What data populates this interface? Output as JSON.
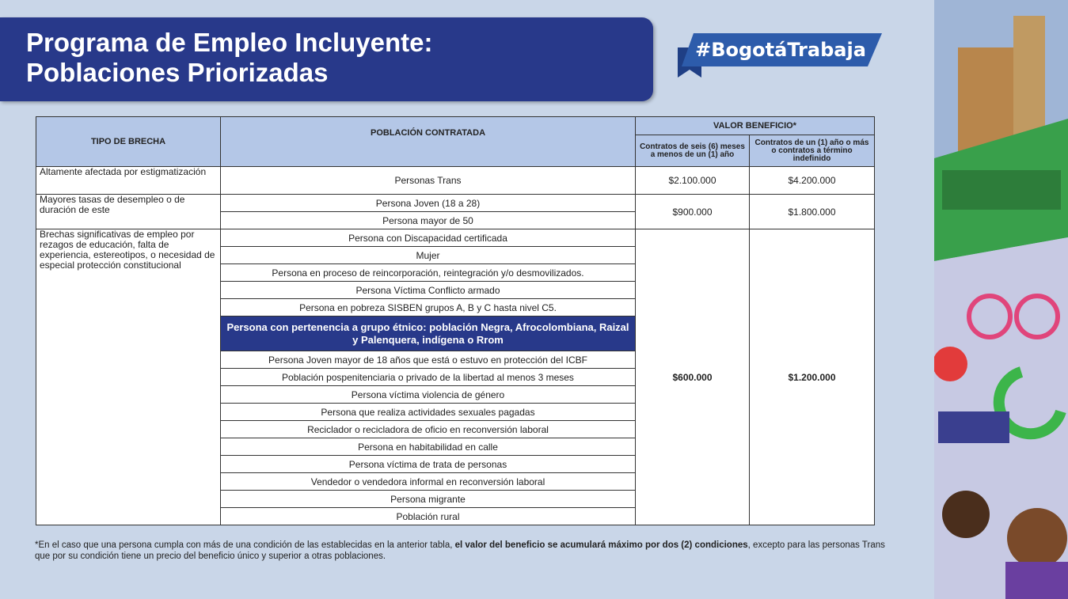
{
  "header": {
    "title_lines": [
      "Programa de Empleo Incluyente:",
      "Poblaciones Priorizadas"
    ],
    "hashtag": "#BogotáTrabaja"
  },
  "table": {
    "headers": {
      "gap": "TIPO DE BRECHA",
      "population": "POBLACIÓN CONTRATADA",
      "value_group": "VALOR BENEFICIO*",
      "value_short": "Contratos de seis (6) meses a menos de un (1) año",
      "value_long": "Contratos de un (1) año o más o contratos a término indefinido"
    },
    "groups": [
      {
        "gap": "Altamente afectada por estigmatización",
        "populations": [
          "Personas Trans"
        ],
        "value_short": "$2.100.000",
        "value_long": "$4.200.000"
      },
      {
        "gap": "Mayores tasas de desempleo o de duración de este",
        "populations": [
          "Persona Joven (18 a 28)",
          "Persona mayor de 50"
        ],
        "value_short": "$900.000",
        "value_long": "$1.800.000"
      },
      {
        "gap": "Brechas significativas de empleo por rezagos de educación, falta de experiencia, estereotipos, o necesidad de especial protección constitucional",
        "populations": [
          "Persona con Discapacidad certificada",
          "Mujer",
          "Persona en proceso de reincorporación, reintegración y/o desmovilizados.",
          "Persona Víctima Conflicto armado",
          "Persona en pobreza SISBEN grupos A, B y C hasta nivel C5.",
          "Persona con pertenencia a grupo étnico: población Negra, Afrocolombiana, Raizal y Palenquera, indígena o Rrom",
          "Persona Joven mayor de 18 años que está o estuvo en protección del ICBF",
          "Población pospenitenciaria o privado de la libertad al menos 3 meses",
          "Persona víctima violencia de género",
          "Persona que realiza actividades sexuales pagadas",
          "Reciclador o recicladora de oficio en reconversión laboral",
          "Persona en habitabilidad en calle",
          "Persona víctima de trata de personas",
          "Vendedor o vendedora informal en reconversión laboral",
          "Persona migrante",
          "Población rural"
        ],
        "highlighted": 5,
        "value_short": "$600.000",
        "value_long": "$1.200.000",
        "values_bold": true
      }
    ]
  },
  "footnote": [
    "*En el caso que una persona cumpla con más de una condición de las establecidas en la anterior tabla, ",
    "el valor del beneficio se acumulará máximo por dos (2) condiciones",
    ", excepto para las personas Trans que por su condición tiene un precio del beneficio único y superior a otras poblaciones."
  ]
}
